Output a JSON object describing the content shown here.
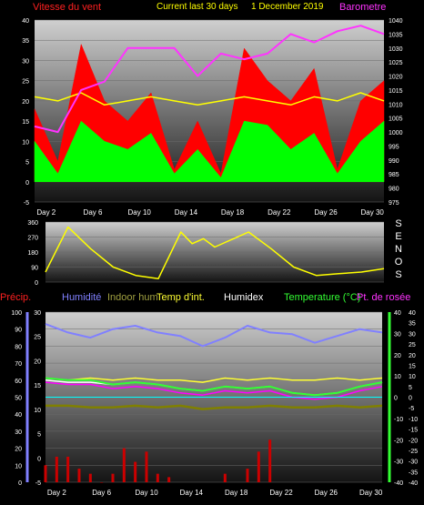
{
  "header": {
    "left": "Vitesse du vent",
    "center": "Current last 30 days",
    "date": "1 December 2019",
    "right": "Barometre"
  },
  "bottom_header": {
    "precip": "Précip.",
    "humidite": "Humidité",
    "indoor": "Indoor hum",
    "temp_int": "Temp d'int.",
    "humidex": "Humidex",
    "temperature": "Temperature (°C)",
    "rosee": "Pt. de rosée"
  },
  "compass": [
    "S",
    "E",
    "N",
    "O",
    "S"
  ],
  "colors": {
    "wind_gust": "#ff0000",
    "wind_avg": "#00ff00",
    "barometer": "#ff33ff",
    "direction": "#ffff00",
    "temperature": "#33ff33",
    "humidity": "#8080ff",
    "indoor_hum": "#808000",
    "temp_int": "#ffff33",
    "humidex": "#ffffff",
    "dew_point": "#ff00ff",
    "precip": "#cc0000",
    "freeze_line": "#00ffff"
  },
  "chart_data": [
    {
      "type": "line",
      "name": "wind-barometer",
      "x_ticks": [
        "Day 2",
        "Day 6",
        "Day 10",
        "Day 14",
        "Day 18",
        "Day 22",
        "Day 26",
        "Day 30"
      ],
      "y_left": {
        "ticks": [
          "-5",
          "0",
          "5",
          "10",
          "15",
          "20",
          "25",
          "30",
          "35",
          "40"
        ],
        "ylim": [
          -5,
          40
        ]
      },
      "y_right": {
        "ticks": [
          "975",
          "980",
          "985",
          "990",
          "995",
          "1000",
          "1005",
          "1010",
          "1015",
          "1020",
          "1025",
          "1030",
          "1035",
          "1040"
        ],
        "ylim": [
          975,
          1040
        ]
      },
      "series": [
        {
          "name": "Vitesse du vent",
          "role": "gust",
          "x": [
            1,
            3,
            5,
            7,
            9,
            11,
            13,
            15,
            17,
            19,
            21,
            23,
            25,
            27,
            29,
            31
          ],
          "values": [
            18,
            5,
            34,
            20,
            15,
            22,
            3,
            15,
            2,
            33,
            25,
            20,
            28,
            3,
            20,
            25
          ]
        },
        {
          "name": "Vitesse du vent",
          "role": "average",
          "x": [
            1,
            3,
            5,
            7,
            9,
            11,
            13,
            15,
            17,
            19,
            21,
            23,
            25,
            27,
            29,
            31
          ],
          "values": [
            10,
            2,
            15,
            10,
            8,
            12,
            2,
            8,
            1,
            15,
            14,
            8,
            12,
            2,
            10,
            15
          ]
        },
        {
          "name": "Barometre",
          "x": [
            1,
            3,
            5,
            7,
            9,
            11,
            13,
            15,
            17,
            19,
            21,
            23,
            25,
            27,
            29,
            31
          ],
          "values": [
            1002,
            1000,
            1015,
            1018,
            1030,
            1030,
            1030,
            1020,
            1028,
            1026,
            1028,
            1035,
            1032,
            1036,
            1038,
            1035
          ]
        },
        {
          "name": "direction-trace",
          "x": [
            1,
            3,
            5,
            7,
            9,
            11,
            13,
            15,
            17,
            19,
            21,
            23,
            25,
            27,
            29,
            31
          ],
          "values": [
            21,
            20,
            22,
            19,
            20,
            21,
            20,
            19,
            20,
            21,
            20,
            19,
            21,
            20,
            22,
            20
          ]
        }
      ]
    },
    {
      "type": "line",
      "name": "wind-direction",
      "x_ticks": [
        "Day 2",
        "Day 6",
        "Day 10",
        "Day 14",
        "Day 18",
        "Day 22",
        "Day 26",
        "Day 30"
      ],
      "y_left": {
        "ticks": [
          "0",
          "90",
          "180",
          "270",
          "360"
        ],
        "ylim": [
          0,
          360
        ]
      },
      "series": [
        {
          "name": "direction",
          "x": [
            1,
            3,
            5,
            7,
            9,
            11,
            13,
            14,
            15,
            16,
            17,
            19,
            21,
            23,
            25,
            27,
            29,
            31
          ],
          "values": [
            60,
            330,
            200,
            90,
            40,
            20,
            300,
            230,
            260,
            210,
            240,
            300,
            200,
            90,
            40,
            50,
            60,
            80
          ]
        }
      ]
    },
    {
      "type": "line",
      "name": "temperature-humidity",
      "x_ticks": [
        "Day 2",
        "Day 6",
        "Day 10",
        "Day 14",
        "Day 18",
        "Day 22",
        "Day 26",
        "Day 30"
      ],
      "y_precip": {
        "ticks": [
          "0",
          "10",
          "20",
          "30",
          "40",
          "50",
          "60",
          "70",
          "80",
          "90",
          "100"
        ],
        "ylim": [
          0,
          100
        ]
      },
      "y_left": {
        "ticks": [
          "-5",
          "0",
          "5",
          "10",
          "15",
          "20",
          "25",
          "30"
        ],
        "ylim": [
          -5,
          30
        ]
      },
      "y_right_inner": {
        "ticks": [
          "-40",
          "-30",
          "-20",
          "-10",
          "0",
          "10",
          "20",
          "30",
          "40"
        ],
        "ylim": [
          -40,
          40
        ]
      },
      "y_right_outer": {
        "ticks": [
          "-40",
          "-35",
          "-30",
          "-25",
          "-20",
          "-15",
          "-10",
          "-5",
          "0",
          "5",
          "10",
          "15",
          "20",
          "25",
          "30",
          "35",
          "40"
        ],
        "ylim": [
          -40,
          40
        ]
      },
      "series": [
        {
          "name": "Humidité",
          "axis": "precip",
          "x": [
            1,
            3,
            5,
            7,
            9,
            11,
            13,
            15,
            17,
            19,
            21,
            23,
            25,
            27,
            29,
            31
          ],
          "values": [
            93,
            88,
            85,
            90,
            92,
            88,
            86,
            80,
            85,
            92,
            88,
            87,
            82,
            86,
            90,
            88
          ]
        },
        {
          "name": "Indoor hum",
          "axis": "precip",
          "x": [
            1,
            3,
            5,
            7,
            9,
            11,
            13,
            15,
            17,
            19,
            21,
            23,
            25,
            27,
            29,
            31
          ],
          "values": [
            45,
            45,
            44,
            44,
            45,
            44,
            45,
            43,
            44,
            44,
            45,
            44,
            44,
            45,
            44,
            45
          ]
        },
        {
          "name": "Temp d'int.",
          "axis": "inner",
          "x": [
            1,
            3,
            5,
            7,
            9,
            11,
            13,
            15,
            17,
            19,
            21,
            23,
            25,
            27,
            29,
            31
          ],
          "values": [
            9,
            8,
            9,
            8,
            9,
            8,
            8,
            7,
            9,
            8,
            9,
            8,
            8,
            9,
            8,
            9
          ]
        },
        {
          "name": "Humidex",
          "axis": "inner",
          "x": [
            1,
            3,
            5,
            7,
            9,
            11,
            13,
            15,
            17,
            19,
            21,
            23,
            25,
            27,
            29,
            31
          ],
          "values": [
            8,
            7,
            7,
            6,
            7,
            6,
            4,
            3,
            5,
            4,
            5,
            2,
            1,
            2,
            5,
            7
          ]
        },
        {
          "name": "Temperature (°C)",
          "axis": "inner",
          "x": [
            1,
            3,
            5,
            7,
            9,
            11,
            13,
            15,
            17,
            19,
            21,
            23,
            25,
            27,
            29,
            31
          ],
          "values": [
            9,
            8,
            8,
            6,
            7,
            6,
            4,
            3,
            5,
            4,
            5,
            2,
            1,
            2,
            5,
            7
          ]
        },
        {
          "name": "Pt. de rosée",
          "axis": "inner",
          "x": [
            1,
            3,
            5,
            7,
            9,
            11,
            13,
            15,
            17,
            19,
            21,
            23,
            25,
            27,
            29,
            31
          ],
          "values": [
            7,
            6,
            6,
            4,
            5,
            4,
            2,
            1,
            3,
            2,
            3,
            0,
            -1,
            0,
            3,
            5
          ]
        },
        {
          "name": "Précip.",
          "axis": "precip",
          "type": "bar",
          "x": [
            1,
            2,
            3,
            4,
            5,
            6,
            7,
            8,
            9,
            10,
            11,
            12,
            17,
            19,
            20,
            21
          ],
          "values": [
            10,
            15,
            15,
            8,
            5,
            0,
            5,
            20,
            12,
            18,
            5,
            3,
            5,
            8,
            18,
            25
          ]
        }
      ]
    }
  ]
}
